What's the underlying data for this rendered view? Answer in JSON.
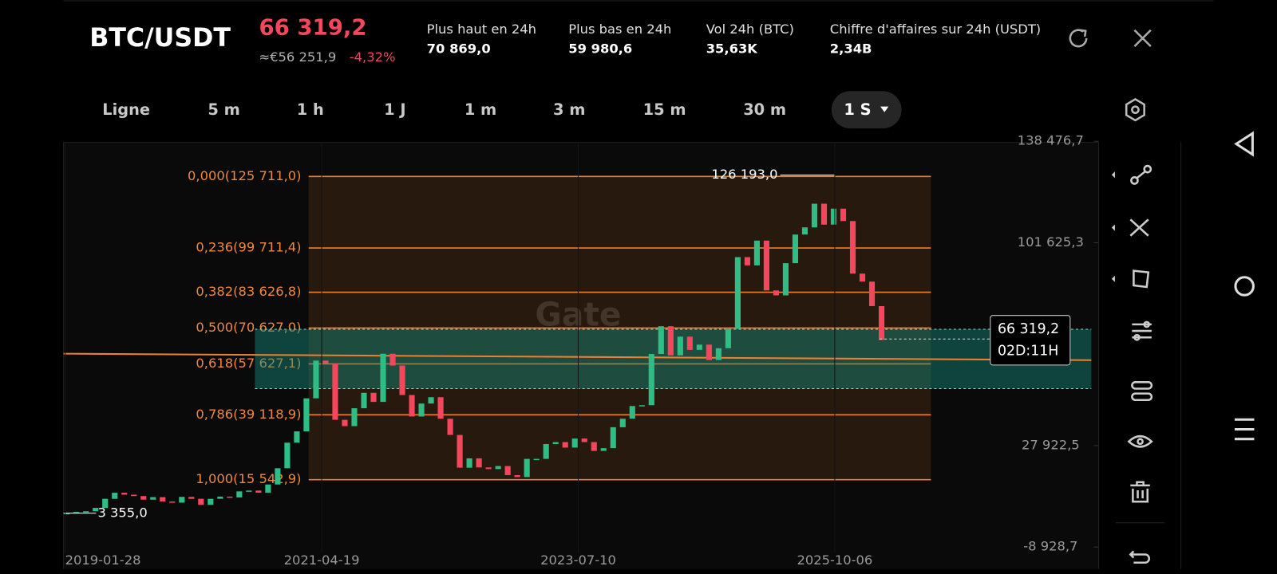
{
  "header": {
    "pair": "BTC/USDT",
    "price": "66 319,2",
    "price_eur": "≈€56 251,9",
    "change": "-4,32%",
    "stats": [
      {
        "label": "Plus haut en 24h",
        "value": "70 869,0"
      },
      {
        "label": "Plus bas en 24h",
        "value": "59 980,6"
      },
      {
        "label": "Vol 24h (BTC)",
        "value": "35,63K"
      },
      {
        "label": "Chiffre d'affaires sur 24h (USDT)",
        "value": "2,34B"
      }
    ]
  },
  "timeframes": [
    "Ligne",
    "5 m",
    "1 h",
    "1 J",
    "1 m",
    "3 m",
    "15 m",
    "30 m",
    "1 S"
  ],
  "chart": {
    "type": "candlestick",
    "closes": [
      3400,
      3800,
      4100,
      5300,
      8600,
      10800,
      10100,
      9600,
      8300,
      9200,
      7600,
      7200,
      9300,
      8600,
      6400,
      8600,
      9400,
      9100,
      11300,
      11600,
      10800,
      13800,
      19700,
      29000,
      33100,
      45100,
      58800,
      57700,
      37300,
      35000,
      41500,
      47100,
      43800,
      61300,
      57000,
      46300,
      38500,
      43200,
      45500,
      37700,
      31800,
      19900,
      23300,
      20000,
      19400,
      20500,
      17200,
      16500,
      23100,
      23100,
      28500,
      29200,
      27200,
      30500,
      29200,
      26000,
      27000,
      34600,
      37700,
      42300,
      42600,
      61200,
      71300,
      60700,
      67500,
      62700,
      64600,
      59000,
      63300,
      70300,
      96400,
      93400,
      102400,
      84300,
      82500,
      94200,
      104600,
      107200,
      115800,
      108200,
      114000,
      109500,
      90400,
      87500,
      78600,
      66319.2
    ],
    "yticks": [
      {
        "value": 138476.7,
        "label": "138 476,7"
      },
      {
        "value": 101625.3,
        "label": "101 625,3"
      },
      {
        "value": 27922.5,
        "label": "27 922,5"
      },
      {
        "value": -8928.7,
        "label": "-8 928,7"
      }
    ],
    "x_labels": [
      "2019-01-28",
      "2021-04-19",
      "2023-07-10",
      "2025-10-06"
    ],
    "fib_levels": [
      {
        "label": "0,000(125 711,0)",
        "value": 125711
      },
      {
        "label": "0,236(99 711,4)",
        "value": 99711.4
      },
      {
        "label": "0,382(83 626,8)",
        "value": 83626.8
      },
      {
        "label": "0,500(70 627,0)",
        "value": 70627
      },
      {
        "label": "0,618(57 627,1)",
        "value": 57627.1
      },
      {
        "label": "0,786(39 118,9)",
        "value": 39118.9
      },
      {
        "label": "1,000(15 542,9)",
        "value": 15542.9
      }
    ],
    "high": {
      "value": 126193,
      "label": "126 193,0"
    },
    "low": {
      "value": 3355,
      "label": "3 355,0"
    },
    "countdown": "02D:11H",
    "watermark": "Gate"
  }
}
